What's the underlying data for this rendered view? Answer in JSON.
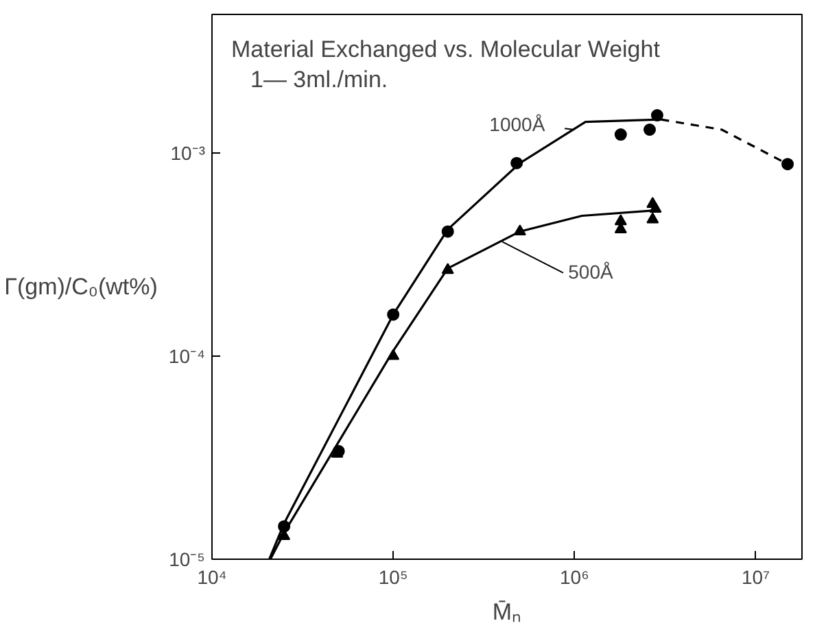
{
  "chart_data": {
    "type": "scatter",
    "title": "Material Exchanged vs. Molecular Weight",
    "subtitle": "1— 3ml./min.",
    "xlabel": "M̄ₙ",
    "ylabel": "Γ(gm)/C₀(wt%)",
    "log": "xy",
    "xlim": [
      10000,
      18000000
    ],
    "ylim": [
      1e-05,
      0.0048
    ],
    "xticks": [
      {
        "value": 10000,
        "label": "10⁴"
      },
      {
        "value": 100000,
        "label": "10⁵"
      },
      {
        "value": 1000000,
        "label": "10⁶"
      },
      {
        "value": 10000000,
        "label": "10⁷"
      }
    ],
    "yticks": [
      {
        "value": 1e-05,
        "label": "10⁻⁵"
      },
      {
        "value": 0.0001,
        "label": "10⁻⁴"
      },
      {
        "value": 0.001,
        "label": "10⁻³"
      }
    ],
    "grid": false,
    "series": [
      {
        "marker": "circle",
        "color": "#000000",
        "x": [
          25000,
          50000,
          100000,
          200000,
          480000,
          1800000,
          2600000,
          2860000,
          15000000
        ],
        "values": [
          1.45e-05,
          3.4e-05,
          0.00016,
          0.00041,
          0.00089,
          0.00123,
          0.0013,
          0.00153,
          0.00088
        ]
      },
      {
        "marker": "triangle",
        "color": "#000000",
        "x": [
          25000,
          49000,
          100000,
          200000,
          500000,
          1800000,
          1800000,
          2700000,
          2700000,
          2800000
        ],
        "values": [
          1.3e-05,
          3.3e-05,
          0.0001,
          0.000265,
          0.00041,
          0.00042,
          0.00046,
          0.00047,
          0.00056,
          0.00053
        ]
      },
      {
        "type": "line",
        "line_style": "solid",
        "color": "#000000",
        "x": [
          20700,
          25000,
          100000,
          200000,
          500000,
          1150000,
          3000000
        ],
        "values": [
          1e-05,
          1.5e-05,
          0.00016,
          0.00042,
          0.00089,
          0.00142,
          0.00146
        ]
      },
      {
        "type": "line",
        "line_style": "dashed",
        "color": "#000000",
        "x": [
          3000000,
          6500000,
          15000000
        ],
        "values": [
          0.00146,
          0.0013,
          0.00088
        ]
      },
      {
        "type": "line",
        "line_style": "solid",
        "color": "#000000",
        "x": [
          21000,
          25000,
          100000,
          200000,
          500000,
          1100000,
          2700000
        ],
        "values": [
          1e-05,
          1.35e-05,
          0.000106,
          0.00027,
          0.00041,
          0.00049,
          0.00052
        ]
      }
    ],
    "annotations": [
      {
        "text": "1000Å",
        "x": 1000000,
        "y": 0.0013
      },
      {
        "text": "500Å",
        "x": 400000,
        "y": 0.000365
      }
    ]
  }
}
